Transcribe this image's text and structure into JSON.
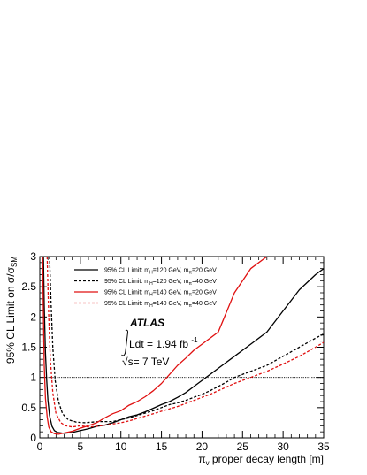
{
  "chart_data": {
    "type": "line",
    "xlabel_main": "π",
    "xlabel_sub": "v",
    "xlabel_rest": " proper decay length [m]",
    "ylabel_main": "95% CL Limit on σ/σ",
    "ylabel_sub": "SM",
    "xlim": [
      0,
      35
    ],
    "ylim": [
      0,
      3
    ],
    "x_ticks": [
      0,
      5,
      10,
      15,
      20,
      25,
      30,
      35
    ],
    "x_tick_labels": [
      "0",
      "5",
      "10",
      "15",
      "20",
      "25",
      "30",
      "35"
    ],
    "y_ticks": [
      0,
      0.5,
      1,
      1.5,
      2,
      2.5,
      3
    ],
    "y_tick_labels": [
      "0",
      "0.5",
      "1",
      "1.5",
      "2",
      "2.5",
      "3"
    ],
    "reference_line": 1,
    "atlas_label": "ATLAS",
    "lumi_text": "Ldt = 1.94 fb",
    "lumi_sup": "-1",
    "energy_text": "√s= 7 TeV",
    "series": [
      {
        "legend_prefix": "95% CL Limit: m",
        "legend_sub1": "H",
        "legend_mid": "=120 GeV, m",
        "legend_sub2": "π",
        "legend_suffix": "=20 GeV",
        "color": "#000000",
        "dash": false,
        "x": [
          0.45,
          0.55,
          0.7,
          0.85,
          1.0,
          1.2,
          1.5,
          1.8,
          2.2,
          3,
          4,
          5,
          6,
          7,
          8,
          9,
          10,
          11,
          12,
          13,
          14,
          15,
          16,
          17,
          18,
          19,
          20,
          21,
          22,
          24,
          26,
          28,
          30,
          32,
          34,
          35
        ],
        "y": [
          3.0,
          2.2,
          1.4,
          0.95,
          0.62,
          0.37,
          0.19,
          0.12,
          0.09,
          0.075,
          0.09,
          0.12,
          0.15,
          0.19,
          0.21,
          0.25,
          0.3,
          0.35,
          0.38,
          0.43,
          0.49,
          0.55,
          0.6,
          0.67,
          0.75,
          0.85,
          0.95,
          1.05,
          1.15,
          1.35,
          1.55,
          1.75,
          2.1,
          2.45,
          2.7,
          2.8
        ]
      },
      {
        "legend_prefix": "95% CL Limit: m",
        "legend_sub1": "H",
        "legend_mid": "=120 GeV, m",
        "legend_sub2": "π",
        "legend_suffix": "=40 GeV",
        "color": "#000000",
        "dash": true,
        "x": [
          1.2,
          1.4,
          1.6,
          1.9,
          2.3,
          2.8,
          3.5,
          4.5,
          5.5,
          6.5,
          7.5,
          9,
          10,
          11,
          12,
          13,
          14,
          15,
          16,
          17,
          18,
          19,
          20,
          21,
          22,
          23,
          24,
          26,
          28,
          30,
          32,
          34,
          35
        ],
        "y": [
          3.0,
          2.2,
          1.5,
          0.95,
          0.6,
          0.4,
          0.3,
          0.26,
          0.25,
          0.26,
          0.27,
          0.27,
          0.3,
          0.33,
          0.37,
          0.41,
          0.45,
          0.5,
          0.55,
          0.58,
          0.62,
          0.67,
          0.72,
          0.78,
          0.85,
          0.92,
          1.0,
          1.1,
          1.2,
          1.35,
          1.5,
          1.65,
          1.72
        ]
      },
      {
        "legend_prefix": "95% CL Limit: m",
        "legend_sub1": "H",
        "legend_mid": "=140 GeV, m",
        "legend_sub2": "π",
        "legend_suffix": "=20 GeV",
        "color": "#e01010",
        "dash": false,
        "x": [
          0.35,
          0.45,
          0.55,
          0.7,
          0.9,
          1.1,
          1.4,
          1.8,
          2.3,
          3,
          4,
          5,
          6,
          7,
          8,
          9,
          10,
          11,
          12,
          13,
          14,
          15,
          16,
          17,
          18,
          19,
          20,
          22,
          24,
          26,
          28
        ],
        "y": [
          3.0,
          2.0,
          1.2,
          0.65,
          0.35,
          0.18,
          0.1,
          0.07,
          0.06,
          0.08,
          0.11,
          0.16,
          0.2,
          0.25,
          0.33,
          0.4,
          0.45,
          0.54,
          0.6,
          0.68,
          0.78,
          0.9,
          1.05,
          1.2,
          1.32,
          1.45,
          1.55,
          1.75,
          2.4,
          2.8,
          3.0
        ]
      },
      {
        "legend_prefix": "95% CL Limit: m",
        "legend_sub1": "H",
        "legend_mid": "=140 GeV, m",
        "legend_sub2": "π",
        "legend_suffix": "=40 GeV",
        "color": "#e01010",
        "dash": true,
        "x": [
          0.9,
          1.1,
          1.3,
          1.6,
          2.0,
          2.6,
          3.2,
          4,
          5,
          6,
          7,
          8,
          9,
          10,
          11,
          12,
          13,
          14,
          15,
          16,
          17,
          18,
          19,
          20,
          21,
          22,
          23,
          24,
          26,
          28,
          30,
          32,
          34,
          35
        ],
        "y": [
          3.0,
          2.0,
          1.3,
          0.75,
          0.4,
          0.25,
          0.2,
          0.18,
          0.2,
          0.18,
          0.19,
          0.21,
          0.23,
          0.25,
          0.28,
          0.32,
          0.36,
          0.4,
          0.44,
          0.48,
          0.52,
          0.57,
          0.62,
          0.67,
          0.72,
          0.78,
          0.84,
          0.9,
          1.0,
          1.1,
          1.22,
          1.35,
          1.5,
          1.58
        ]
      }
    ]
  }
}
